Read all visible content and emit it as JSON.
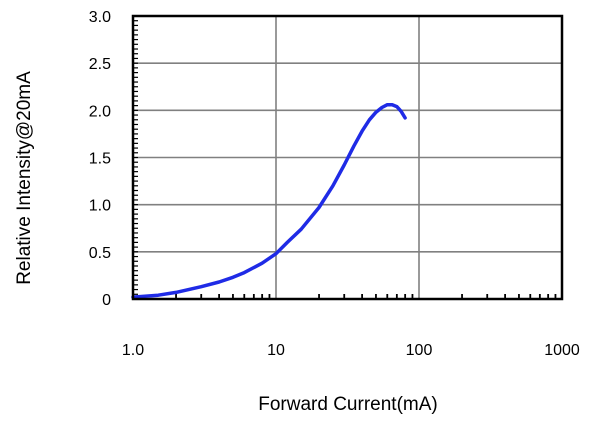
{
  "chart_data": {
    "type": "line",
    "title": "",
    "xlabel": "Forward Current(mA)",
    "ylabel": "Relative Intensity@20mA",
    "x_scale": "log",
    "xlim": [
      1,
      1000
    ],
    "ylim": [
      0,
      3.0
    ],
    "x_ticks": [
      1,
      10,
      100,
      1000
    ],
    "x_tick_labels": [
      "1.0",
      "10",
      "100",
      "1000"
    ],
    "y_ticks": [
      0,
      0.5,
      1.0,
      1.5,
      2.0,
      2.5,
      3.0
    ],
    "y_tick_labels": [
      "0",
      "0.5",
      "1.0",
      "1.5",
      "2.0",
      "2.5",
      "3.0"
    ],
    "grid": true,
    "legend": "none",
    "series": [
      {
        "color": "#1f2be6",
        "x": [
          1.0,
          1.5,
          2,
          3,
          4,
          5,
          6,
          8,
          10,
          12,
          15,
          20,
          25,
          30,
          35,
          40,
          45,
          50,
          55,
          60,
          65,
          70,
          75,
          80
        ],
        "y": [
          0.02,
          0.04,
          0.07,
          0.13,
          0.18,
          0.23,
          0.28,
          0.38,
          0.48,
          0.6,
          0.74,
          0.97,
          1.2,
          1.42,
          1.62,
          1.78,
          1.9,
          1.98,
          2.03,
          2.06,
          2.06,
          2.04,
          1.99,
          1.92
        ]
      }
    ]
  }
}
